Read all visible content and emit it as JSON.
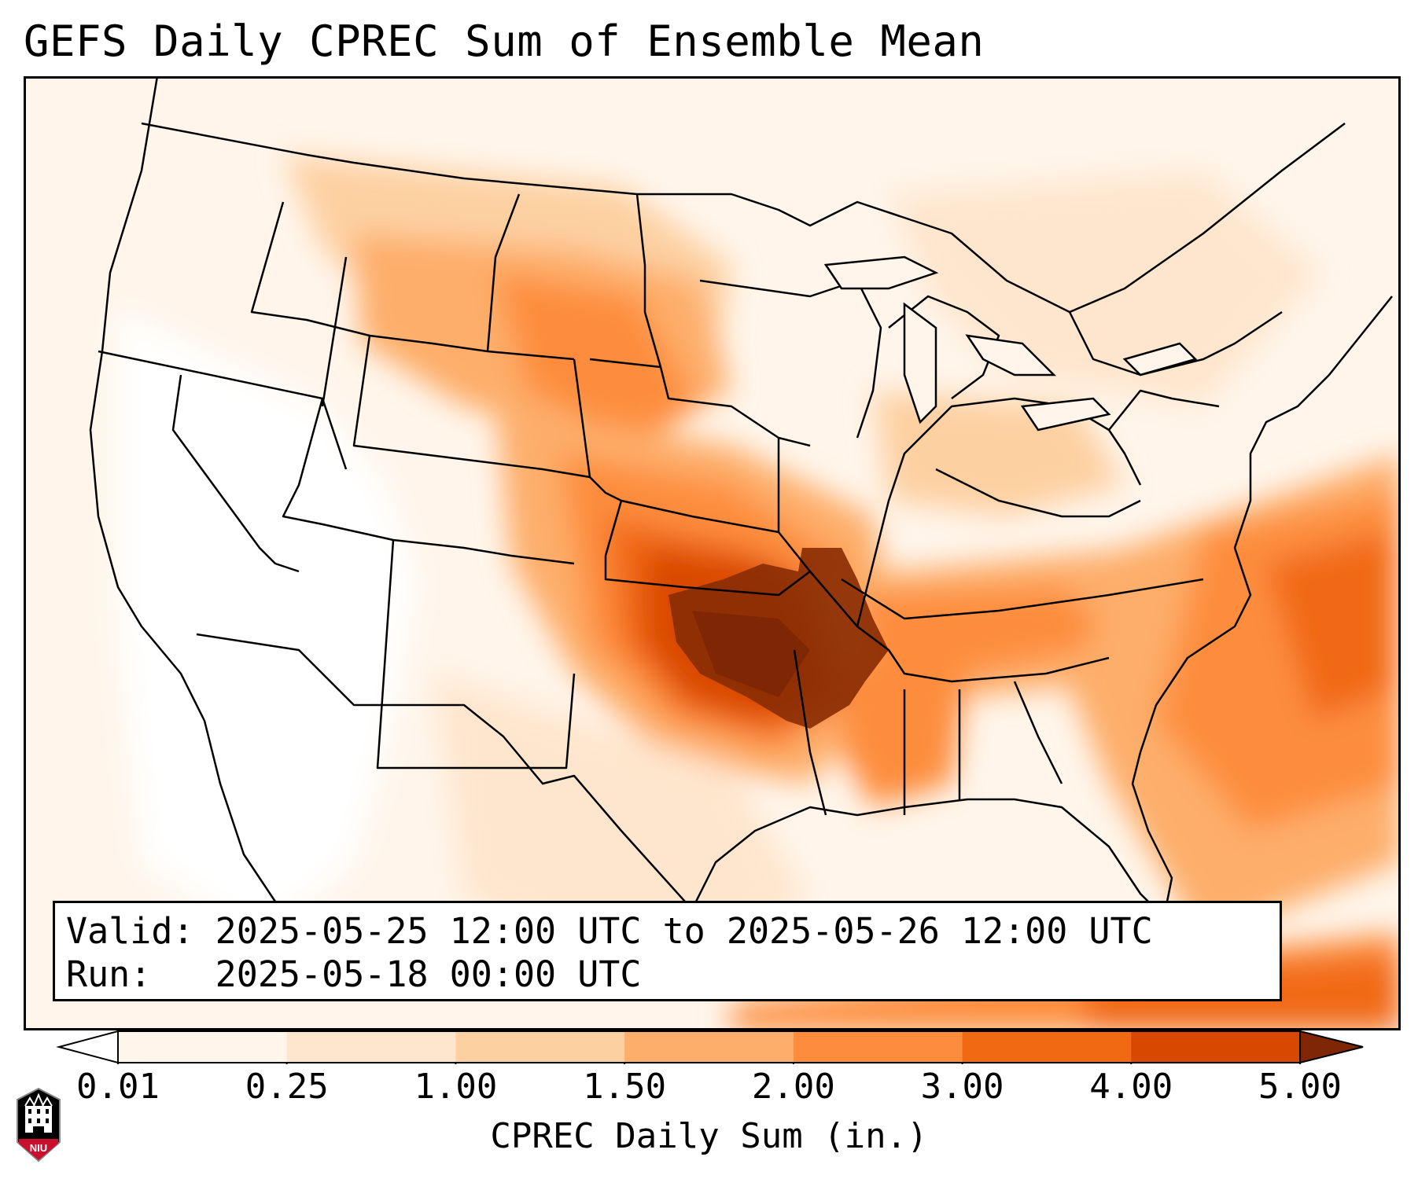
{
  "title": "GEFS Daily CPREC Sum of Ensemble Mean",
  "info": {
    "valid_line": "Valid: 2025-05-25 12:00 UTC to 2025-05-26 12:00 UTC",
    "run_line": "Run:   2025-05-18 00:00 UTC"
  },
  "colorbar": {
    "label": "CPREC Daily Sum (in.)",
    "ticks": [
      "0.01",
      "0.25",
      "1.00",
      "1.50",
      "2.00",
      "3.00",
      "4.00",
      "5.00"
    ],
    "colors": [
      "#fff5eb",
      "#fee6ce",
      "#fdd0a2",
      "#fdae6b",
      "#fd8d3c",
      "#f16913",
      "#d94801",
      "#a63603"
    ],
    "under_color": "#ffffff",
    "over_color": "#7f2704",
    "extend": "both"
  },
  "logo": {
    "text": "NIU",
    "colors": [
      "#c8102e",
      "#000000",
      "#ffffff"
    ]
  },
  "map": {
    "region": "Contiguous United States",
    "land_outline_color": "#000000",
    "max_color": "#8b2e04",
    "background": "#fff5eb"
  }
}
